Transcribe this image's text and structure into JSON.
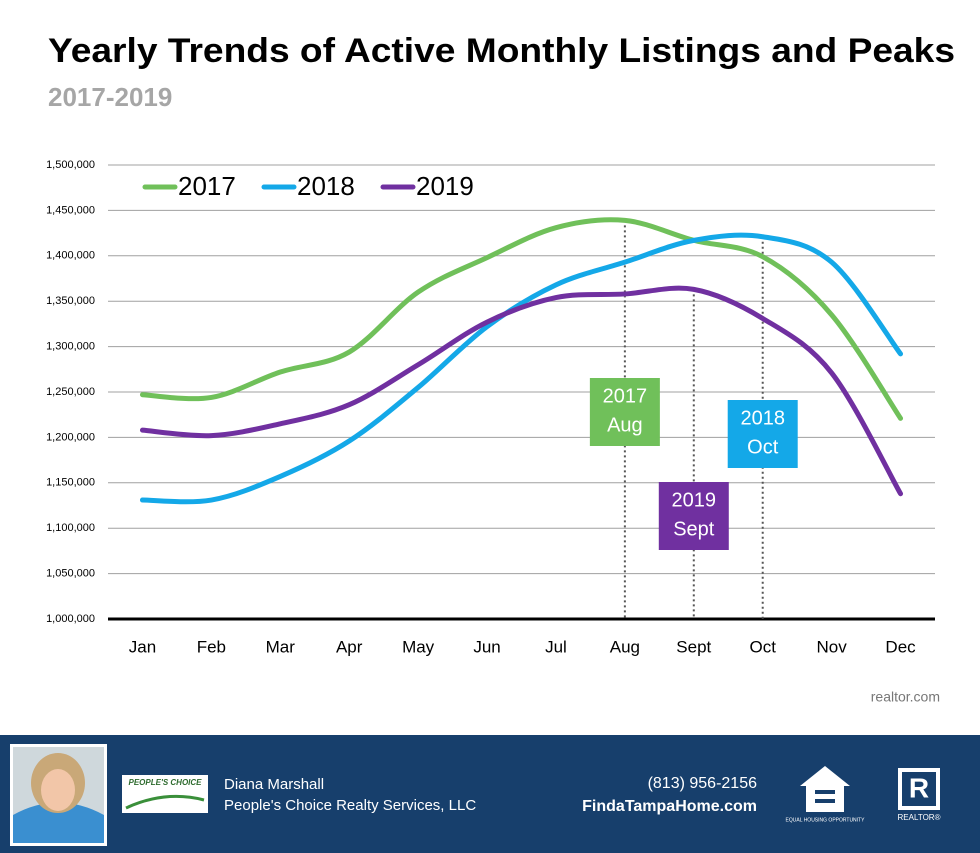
{
  "chart_data": {
    "type": "line",
    "title": "Yearly Trends of Active Monthly Listings and Peaks",
    "subtitle": "2017-2019",
    "source": "realtor.com",
    "categories": [
      "Jan",
      "Feb",
      "Mar",
      "Apr",
      "May",
      "Jun",
      "Jul",
      "Aug",
      "Sept",
      "Oct",
      "Nov",
      "Dec"
    ],
    "series": [
      {
        "name": "2017",
        "color": "#70c05a",
        "values": [
          1247000,
          1244000,
          1272000,
          1294000,
          1360000,
          1398000,
          1431000,
          1439000,
          1417000,
          1399000,
          1335000,
          1221000
        ]
      },
      {
        "name": "2018",
        "color": "#14a8e8",
        "values": [
          1131000,
          1131000,
          1157000,
          1196000,
          1255000,
          1322000,
          1368000,
          1393000,
          1417000,
          1421000,
          1393000,
          1292000
        ]
      },
      {
        "name": "2019",
        "color": "#7030a0",
        "values": [
          1208000,
          1202000,
          1215000,
          1236000,
          1280000,
          1327000,
          1354000,
          1358000,
          1363000,
          1331000,
          1271000,
          1138000
        ]
      }
    ],
    "annotations": [
      {
        "lines": [
          "2017",
          "Aug"
        ]
      },
      {
        "lines": [
          "2018",
          "Oct"
        ]
      },
      {
        "lines": [
          "2019",
          "Sept"
        ]
      }
    ],
    "ylim": [
      1000000,
      1500000
    ],
    "yticks": [
      {
        "value": 1000000,
        "label": "1,000,000"
      },
      {
        "value": 1050000,
        "label": "1,050,000"
      },
      {
        "value": 1100000,
        "label": "1,100,000"
      },
      {
        "value": 1150000,
        "label": "1,150,000"
      },
      {
        "value": 1200000,
        "label": "1,200,000"
      },
      {
        "value": 1250000,
        "label": "1,250,000"
      },
      {
        "value": 1300000,
        "label": "1,300,000"
      },
      {
        "value": 1350000,
        "label": "1,350,000"
      },
      {
        "value": 1400000,
        "label": "1,400,000"
      },
      {
        "value": 1450000,
        "label": "1,450,000"
      },
      {
        "value": 1500000,
        "label": "1,500,000"
      }
    ],
    "grid": true,
    "legend": "top-left"
  },
  "footer": {
    "name": "Diana Marshall",
    "company": "People's Choice Realty Services, LLC",
    "logo_text": "PEOPLE'S CHOICE",
    "phone": "(813) 956-2156",
    "website": "FindaTampaHome.com",
    "equal_housing": "EQUAL HOUSING OPPORTUNITY",
    "realtor": "REALTOR®"
  }
}
